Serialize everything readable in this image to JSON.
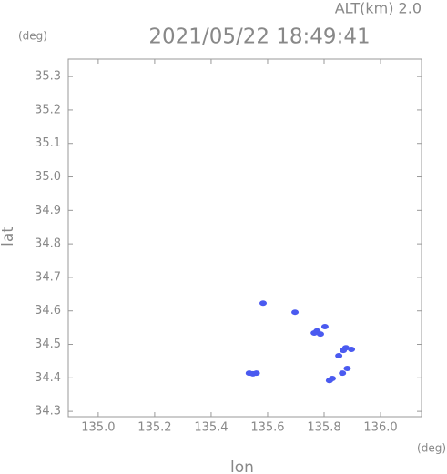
{
  "chart_data": {
    "type": "scatter",
    "title": "2021/05/22 18:49:41",
    "subtitle": "ALT(km) 2.0",
    "y_unit": "(deg)",
    "x_unit": "(deg)",
    "xlabel": "lon",
    "ylabel": "lat",
    "x": [
      135.584,
      135.697,
      135.765,
      135.775,
      135.803,
      135.787,
      135.868,
      135.852,
      135.877,
      135.897,
      135.865,
      135.882,
      135.829,
      135.819,
      135.535,
      135.548,
      135.56
    ],
    "values": [
      34.623,
      34.596,
      34.534,
      34.54,
      34.553,
      34.531,
      34.482,
      34.466,
      34.49,
      34.485,
      34.414,
      34.428,
      34.398,
      34.392,
      34.414,
      34.412,
      34.414
    ],
    "color": "#4a5af0",
    "xlim": [
      134.894,
      136.145
    ],
    "ylim": [
      34.284,
      35.352
    ],
    "xticks": [
      {
        "value": 135.0,
        "label": "135.0"
      },
      135.2,
      135.4,
      135.6,
      135.8,
      {
        "value": 136.0,
        "label": "136.0"
      }
    ],
    "yticks": [
      34.3,
      34.4,
      34.5,
      34.6,
      34.7,
      34.8,
      34.9,
      {
        "value": 35.0,
        "label": "35.0"
      },
      35.1,
      35.2,
      35.3
    ],
    "grid": false
  }
}
